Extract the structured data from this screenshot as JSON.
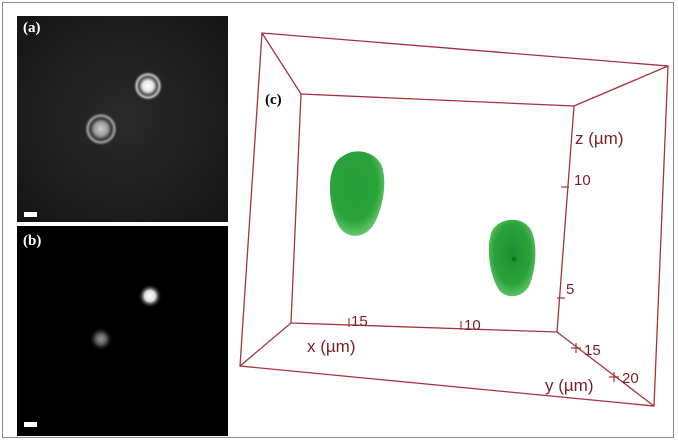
{
  "figure": {
    "panel_a": {
      "label": "(a)",
      "description_icon": "bright-field-two-particles"
    },
    "panel_b": {
      "label": "(b)",
      "description_icon": "fluorescence-two-particles"
    },
    "panel_c": {
      "label": "(c)",
      "axis_x_label": "x (µm)",
      "axis_y_label": "y (µm)",
      "axis_z_label": "z (µm)",
      "x_ticks": [
        "15",
        "10"
      ],
      "y_ticks": [
        "15",
        "20"
      ],
      "z_ticks": [
        "10",
        "5"
      ]
    },
    "colors": {
      "box_edge": "#a3333d",
      "axis_text": "#7a1f2a",
      "particle_green": "#2aa23a",
      "particle_green_light": "#64c86a"
    }
  }
}
